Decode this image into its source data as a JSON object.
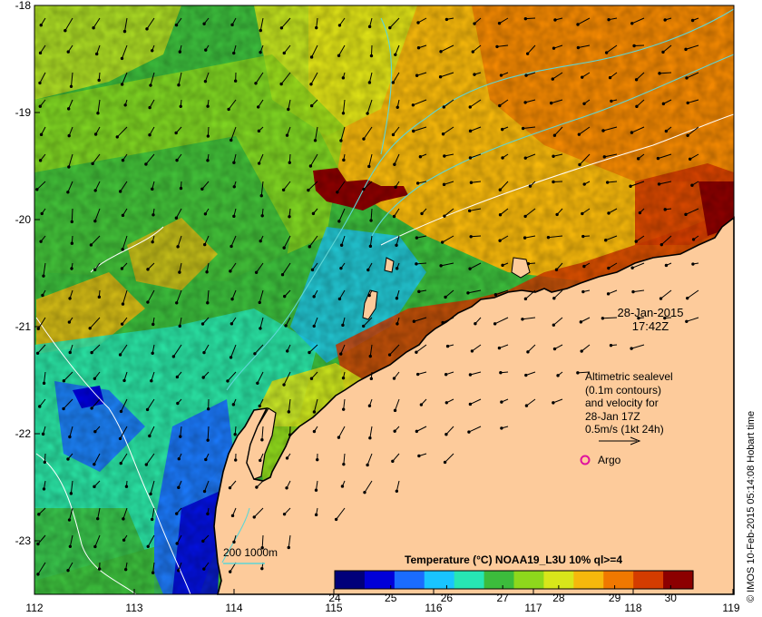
{
  "map": {
    "date": "28-Jan-2015",
    "time": "17:42Z",
    "lat_ticks": [
      "-18",
      "-19",
      "-20",
      "-21",
      "-22",
      "-23"
    ],
    "lon_ticks": [
      "112",
      "113",
      "114",
      "115",
      "116",
      "117",
      "118",
      "119"
    ],
    "lat_range": [
      -23.5,
      -18.0
    ],
    "lon_range": [
      112.0,
      119.0
    ]
  },
  "legend": {
    "line1": "Altimetric sealevel",
    "line2": "(0.1m contours)",
    "line3": "and velocity for",
    "line4": "28-Jan 17Z",
    "line5": "0.5m/s (1kt 24h)",
    "argo_label": "Argo",
    "argo_color": "#e0129e"
  },
  "depth_legend": {
    "label": "200  1000m",
    "color": "#5ed6d6"
  },
  "colorbar": {
    "title": "Temperature (°C) NOAA19_L3U 10% ql>=4",
    "ticks": [
      "24",
      "25",
      "26",
      "27",
      "28",
      "29",
      "30"
    ],
    "range": [
      24,
      30.4
    ],
    "colors": [
      "#00007a",
      "#0000d8",
      "#1a6cff",
      "#19c4ff",
      "#27e6b4",
      "#3cbc3c",
      "#8ed81c",
      "#d8e61a",
      "#f6b80c",
      "#f07800",
      "#d43c00",
      "#8c0000"
    ]
  },
  "credit": "© IMOS 10-Feb-2015 05:14:08 Hobart time",
  "colors": {
    "land": "#fdcb9b",
    "coast": "#000000",
    "contour": "#ffffff"
  }
}
